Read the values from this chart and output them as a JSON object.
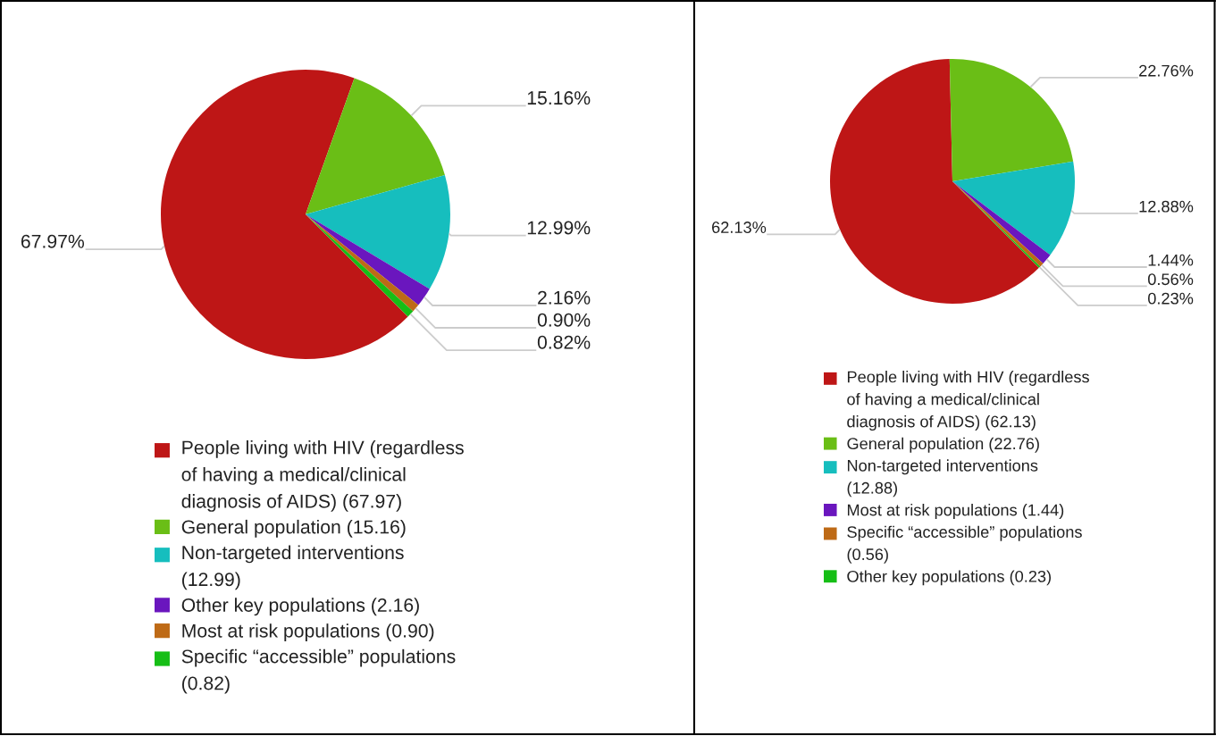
{
  "chart_data": [
    {
      "type": "pie",
      "categories": [
        "People living with HIV (regardless of having a medical/clinical diagnosis of AIDS) (67.97)",
        "General population (15.16)",
        "Non-targeted interventions (12.99)",
        "Other key populations (2.16)",
        "Most at risk populations (0.90)",
        "Specific “accessible” populations (0.82)"
      ],
      "values": [
        67.97,
        15.16,
        12.99,
        2.16,
        0.9,
        0.82
      ],
      "colors": [
        "#be1616",
        "#6abe16",
        "#16bebe",
        "#6a16be",
        "#be6a16",
        "#16be16"
      ],
      "value_labels": [
        "67.97%",
        "15.16%",
        "12.99%",
        "2.16%",
        "0.90%",
        "0.82%"
      ],
      "legend": "bottom"
    },
    {
      "type": "pie",
      "categories": [
        "People living with HIV (regardless of having a medical/clinical diagnosis of AIDS) (62.13)",
        "General population (22.76)",
        "Non-targeted interventions (12.88)",
        "Most at risk populations (1.44)",
        "Specific “accessible” populations (0.56)",
        "Other key populations (0.23)"
      ],
      "values": [
        62.13,
        22.76,
        12.88,
        1.44,
        0.56,
        0.23
      ],
      "colors": [
        "#be1616",
        "#6abe16",
        "#16bebe",
        "#6a16be",
        "#be6a16",
        "#16be16"
      ],
      "value_labels": [
        "62.13%",
        "22.76%",
        "12.88%",
        "1.44%",
        "0.56%",
        "0.23%"
      ],
      "legend": "bottom"
    }
  ]
}
